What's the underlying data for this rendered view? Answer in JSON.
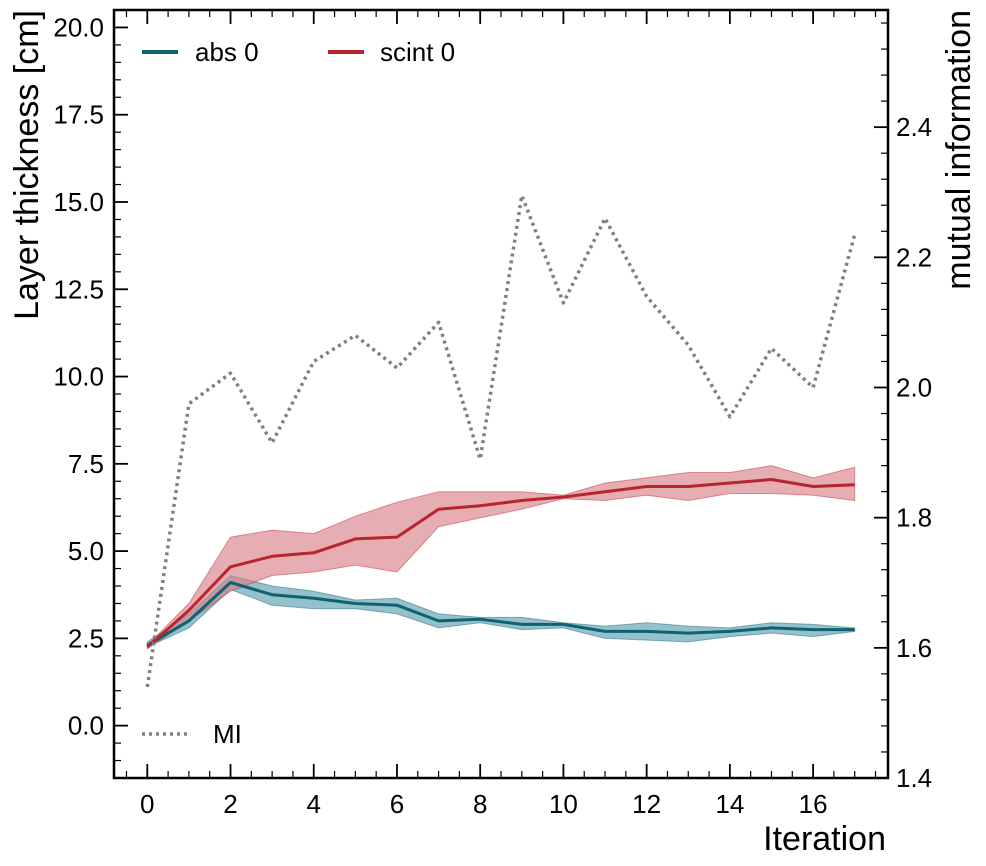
{
  "chart_data": {
    "type": "line",
    "title": "",
    "xlabel": "Iteration",
    "ylabel": "Layer thickness [cm]",
    "y2label": "mutual information",
    "xlim": [
      -0.8,
      17.8
    ],
    "ylim": [
      -1.5,
      20.5
    ],
    "y2lim": [
      1.4,
      2.58
    ],
    "x_ticks": [
      0,
      2,
      4,
      6,
      8,
      10,
      12,
      14,
      16
    ],
    "y_ticks": [
      0.0,
      2.5,
      5.0,
      7.5,
      10.0,
      12.5,
      15.0,
      17.5,
      20.0
    ],
    "y_tick_labels": [
      "0.0",
      "2.5",
      "5.0",
      "7.5",
      "10.0",
      "12.5",
      "15.0",
      "17.5",
      "20.0"
    ],
    "y2_ticks": [
      1.4,
      1.6,
      1.8,
      2.0,
      2.2,
      2.4
    ],
    "y2_tick_labels": [
      "1.4",
      "1.6",
      "1.8",
      "2.0",
      "2.2",
      "2.4"
    ],
    "x": [
      0,
      1,
      2,
      3,
      4,
      5,
      6,
      7,
      8,
      9,
      10,
      11,
      12,
      13,
      14,
      15,
      16,
      17
    ],
    "series": [
      {
        "name": "abs 0",
        "color": "#0f6270",
        "band_color": "#5aa0b0",
        "axis": "left",
        "values": [
          2.3,
          3.0,
          4.1,
          3.75,
          3.65,
          3.5,
          3.45,
          3.0,
          3.05,
          2.9,
          2.9,
          2.7,
          2.7,
          2.65,
          2.7,
          2.8,
          2.75,
          2.75
        ],
        "lower": [
          2.25,
          2.8,
          3.9,
          3.45,
          3.35,
          3.35,
          3.2,
          2.8,
          2.95,
          2.75,
          2.8,
          2.5,
          2.45,
          2.4,
          2.55,
          2.65,
          2.55,
          2.7
        ],
        "upper": [
          2.4,
          3.2,
          4.3,
          4.0,
          3.85,
          3.6,
          3.65,
          3.2,
          3.1,
          3.1,
          2.95,
          2.85,
          2.95,
          2.85,
          2.8,
          2.95,
          2.9,
          2.8
        ]
      },
      {
        "name": "scint 0",
        "color": "#b8252e",
        "band_color": "#d9838a",
        "axis": "left",
        "values": [
          2.25,
          3.3,
          4.55,
          4.85,
          4.95,
          5.35,
          5.4,
          6.2,
          6.3,
          6.45,
          6.55,
          6.7,
          6.85,
          6.85,
          6.95,
          7.05,
          6.85,
          6.9
        ],
        "lower": [
          2.2,
          3.0,
          3.85,
          4.3,
          4.4,
          4.6,
          4.4,
          5.7,
          5.95,
          6.2,
          6.5,
          6.45,
          6.6,
          6.45,
          6.65,
          6.65,
          6.6,
          6.45
        ],
        "upper": [
          2.3,
          3.5,
          5.4,
          5.6,
          5.5,
          6.0,
          6.4,
          6.7,
          6.7,
          6.7,
          6.6,
          6.95,
          7.1,
          7.25,
          7.25,
          7.45,
          7.1,
          7.4
        ]
      },
      {
        "name": "MI",
        "color": "#7f7f7f",
        "axis": "right",
        "style": "dotted",
        "values": [
          1.54,
          1.975,
          2.022,
          1.915,
          2.04,
          2.08,
          2.03,
          2.1,
          1.89,
          2.295,
          2.13,
          2.26,
          2.14,
          2.065,
          1.955,
          2.06,
          2.0,
          2.235
        ]
      }
    ],
    "legend": [
      {
        "label": "abs 0",
        "position": "top-left"
      },
      {
        "label": "scint 0",
        "position": "top-left"
      },
      {
        "label": "MI",
        "position": "bottom-left"
      }
    ],
    "grid": false
  }
}
